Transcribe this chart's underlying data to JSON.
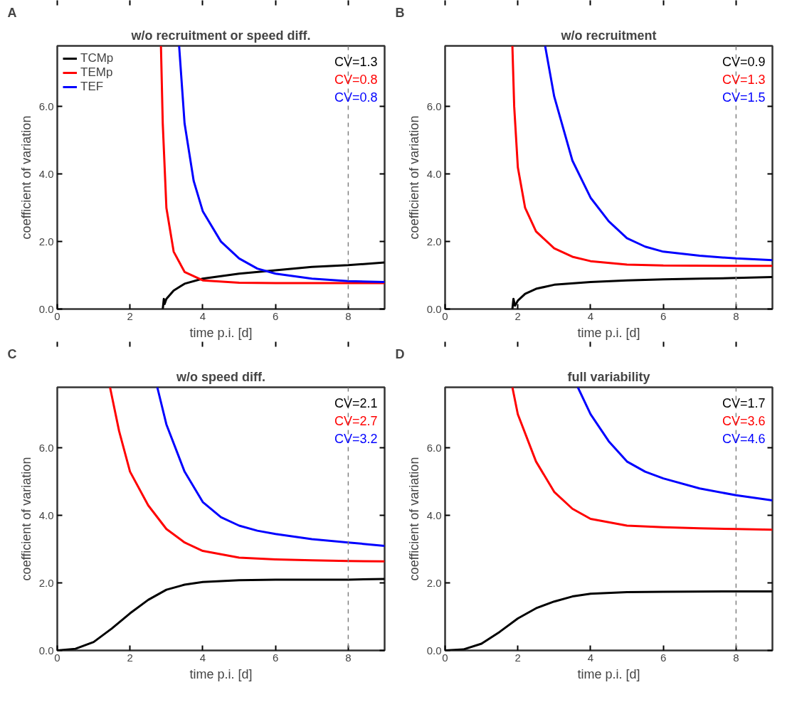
{
  "chart_data": [
    {
      "type": "line",
      "title": "w/o recruitment or speed diff.",
      "xlabel": "time p.i. [d]",
      "ylabel": "coefficient of variation",
      "xlim": [
        0,
        9
      ],
      "ylim": [
        0,
        7.8
      ],
      "xticks": [
        0,
        2,
        4,
        6,
        8
      ],
      "yticks": [
        {
          "value": 0,
          "label": "0.0"
        },
        {
          "value": 2,
          "label": "2.0"
        },
        {
          "value": 4,
          "label": "4.0"
        },
        {
          "value": 6,
          "label": "6.0"
        }
      ],
      "legend": "top left",
      "grid": false,
      "line_style": "solid",
      "marker": "none",
      "ref_lines": [
        {
          "axis": "x",
          "value": 8,
          "label": null,
          "color": "#808080",
          "line_style": "dashed"
        }
      ],
      "annotations": [
        "A",
        "CV=1.3",
        "CV=0.8",
        "CV=0.8"
      ],
      "series": [
        {
          "name": "TCMp",
          "color": "#000000",
          "x": [
            2.9,
            2.93,
            2.95,
            3.0,
            3.2,
            3.5,
            4,
            5,
            6,
            7,
            8,
            9
          ],
          "values": [
            0.0,
            0.3,
            0.15,
            0.3,
            0.55,
            0.75,
            0.9,
            1.05,
            1.15,
            1.25,
            1.3,
            1.38
          ]
        },
        {
          "name": "TEMp",
          "color": "#ff0000",
          "x": [
            2.85,
            2.9,
            3.0,
            3.2,
            3.5,
            4,
            5,
            6,
            8,
            9
          ],
          "values": [
            7.8,
            5.5,
            3.0,
            1.7,
            1.1,
            0.85,
            0.78,
            0.77,
            0.77,
            0.77
          ]
        },
        {
          "name": "TEF",
          "color": "#0000ff",
          "x": [
            3.35,
            3.5,
            3.75,
            4,
            4.5,
            5,
            5.5,
            6,
            7,
            8,
            9
          ],
          "values": [
            7.8,
            5.5,
            3.8,
            2.9,
            2.0,
            1.5,
            1.2,
            1.05,
            0.9,
            0.83,
            0.8
          ]
        }
      ]
    },
    {
      "type": "line",
      "title": "w/o recruitment",
      "xlabel": "time p.i. [d]",
      "ylabel": "coefficient of variation",
      "xlim": [
        0,
        9
      ],
      "ylim": [
        0,
        7.8
      ],
      "xticks": [
        0,
        2,
        4,
        6,
        8
      ],
      "yticks": [
        {
          "value": 0,
          "label": "0.0"
        },
        {
          "value": 2,
          "label": "2.0"
        },
        {
          "value": 4,
          "label": "4.0"
        },
        {
          "value": 6,
          "label": "6.0"
        }
      ],
      "grid": false,
      "line_style": "solid",
      "marker": "none",
      "ref_lines": [
        {
          "axis": "x",
          "value": 8,
          "label": null,
          "color": "#808080",
          "line_style": "dashed"
        }
      ],
      "annotations": [
        "B",
        "CV=0.9",
        "CV=1.3",
        "CV=1.5"
      ],
      "series": [
        {
          "color": "#000000",
          "x": [
            1.85,
            1.88,
            1.92,
            2.0,
            2.2,
            2.5,
            3,
            4,
            5,
            6,
            7,
            8,
            9
          ],
          "values": [
            0.0,
            0.3,
            0.1,
            0.25,
            0.45,
            0.6,
            0.72,
            0.8,
            0.85,
            0.88,
            0.9,
            0.92,
            0.95
          ]
        },
        {
          "color": "#ff0000",
          "x": [
            1.85,
            1.9,
            2.0,
            2.2,
            2.5,
            3,
            3.5,
            4,
            5,
            6,
            8,
            9
          ],
          "values": [
            7.8,
            6.0,
            4.2,
            3.0,
            2.3,
            1.8,
            1.55,
            1.42,
            1.32,
            1.29,
            1.28,
            1.28
          ]
        },
        {
          "color": "#0000ff",
          "x": [
            2.75,
            3,
            3.5,
            4,
            4.5,
            5,
            5.5,
            6,
            7,
            8,
            9
          ],
          "values": [
            7.8,
            6.3,
            4.4,
            3.3,
            2.6,
            2.1,
            1.85,
            1.7,
            1.58,
            1.5,
            1.45
          ]
        }
      ]
    },
    {
      "type": "line",
      "title": "w/o speed diff.",
      "xlabel": "time p.i. [d]",
      "ylabel": "coefficient of variation",
      "xlim": [
        0,
        9
      ],
      "ylim": [
        0,
        7.8
      ],
      "xticks": [
        0,
        2,
        4,
        6,
        8
      ],
      "yticks": [
        {
          "value": 0,
          "label": "0.0"
        },
        {
          "value": 2,
          "label": "2.0"
        },
        {
          "value": 4,
          "label": "4.0"
        },
        {
          "value": 6,
          "label": "6.0"
        }
      ],
      "grid": false,
      "line_style": "solid",
      "marker": "none",
      "ref_lines": [
        {
          "axis": "x",
          "value": 8,
          "label": null,
          "color": "#808080",
          "line_style": "dashed"
        }
      ],
      "annotations": [
        "C",
        "CV=2.1",
        "CV=2.7",
        "CV=3.2"
      ],
      "series": [
        {
          "color": "#000000",
          "x": [
            0,
            0.5,
            1,
            1.5,
            2,
            2.5,
            3,
            3.5,
            4,
            5,
            6,
            8,
            9
          ],
          "values": [
            0,
            0.05,
            0.25,
            0.65,
            1.1,
            1.5,
            1.8,
            1.95,
            2.03,
            2.08,
            2.1,
            2.1,
            2.12
          ]
        },
        {
          "color": "#ff0000",
          "x": [
            1.45,
            1.7,
            2,
            2.5,
            3,
            3.5,
            4,
            5,
            6,
            7,
            8,
            9
          ],
          "values": [
            7.8,
            6.5,
            5.3,
            4.3,
            3.6,
            3.2,
            2.95,
            2.75,
            2.7,
            2.67,
            2.65,
            2.64
          ]
        },
        {
          "color": "#0000ff",
          "x": [
            2.75,
            3,
            3.5,
            4,
            4.5,
            5,
            5.5,
            6,
            7,
            8,
            9
          ],
          "values": [
            7.8,
            6.7,
            5.3,
            4.4,
            3.95,
            3.7,
            3.55,
            3.45,
            3.3,
            3.2,
            3.1
          ]
        }
      ]
    },
    {
      "type": "line",
      "title": "full variability",
      "xlabel": "time p.i. [d]",
      "ylabel": "coefficient of variation",
      "xlim": [
        0,
        9
      ],
      "ylim": [
        0,
        7.8
      ],
      "xticks": [
        0,
        2,
        4,
        6,
        8
      ],
      "yticks": [
        {
          "value": 0,
          "label": "0.0"
        },
        {
          "value": 2,
          "label": "2.0"
        },
        {
          "value": 4,
          "label": "4.0"
        },
        {
          "value": 6,
          "label": "6.0"
        }
      ],
      "grid": false,
      "line_style": "solid",
      "marker": "none",
      "ref_lines": [
        {
          "axis": "x",
          "value": 8,
          "label": null,
          "color": "#808080",
          "line_style": "dashed"
        }
      ],
      "annotations": [
        "D",
        "CV=1.7",
        "CV=3.6",
        "CV=4.6"
      ],
      "series": [
        {
          "color": "#000000",
          "x": [
            0,
            0.5,
            1,
            1.5,
            2,
            2.5,
            3,
            3.5,
            4,
            5,
            6,
            8,
            9
          ],
          "values": [
            0,
            0.03,
            0.2,
            0.55,
            0.95,
            1.25,
            1.45,
            1.6,
            1.68,
            1.73,
            1.74,
            1.75,
            1.75
          ]
        },
        {
          "color": "#ff0000",
          "x": [
            1.85,
            2,
            2.5,
            3,
            3.5,
            4,
            5,
            6,
            7,
            8,
            9
          ],
          "values": [
            7.8,
            7.0,
            5.6,
            4.7,
            4.2,
            3.9,
            3.7,
            3.65,
            3.62,
            3.6,
            3.58
          ]
        },
        {
          "color": "#0000ff",
          "x": [
            3.65,
            4,
            4.5,
            5,
            5.5,
            6,
            7,
            8,
            9
          ],
          "values": [
            7.8,
            7.0,
            6.2,
            5.6,
            5.3,
            5.1,
            4.8,
            4.6,
            4.45
          ]
        }
      ]
    }
  ]
}
